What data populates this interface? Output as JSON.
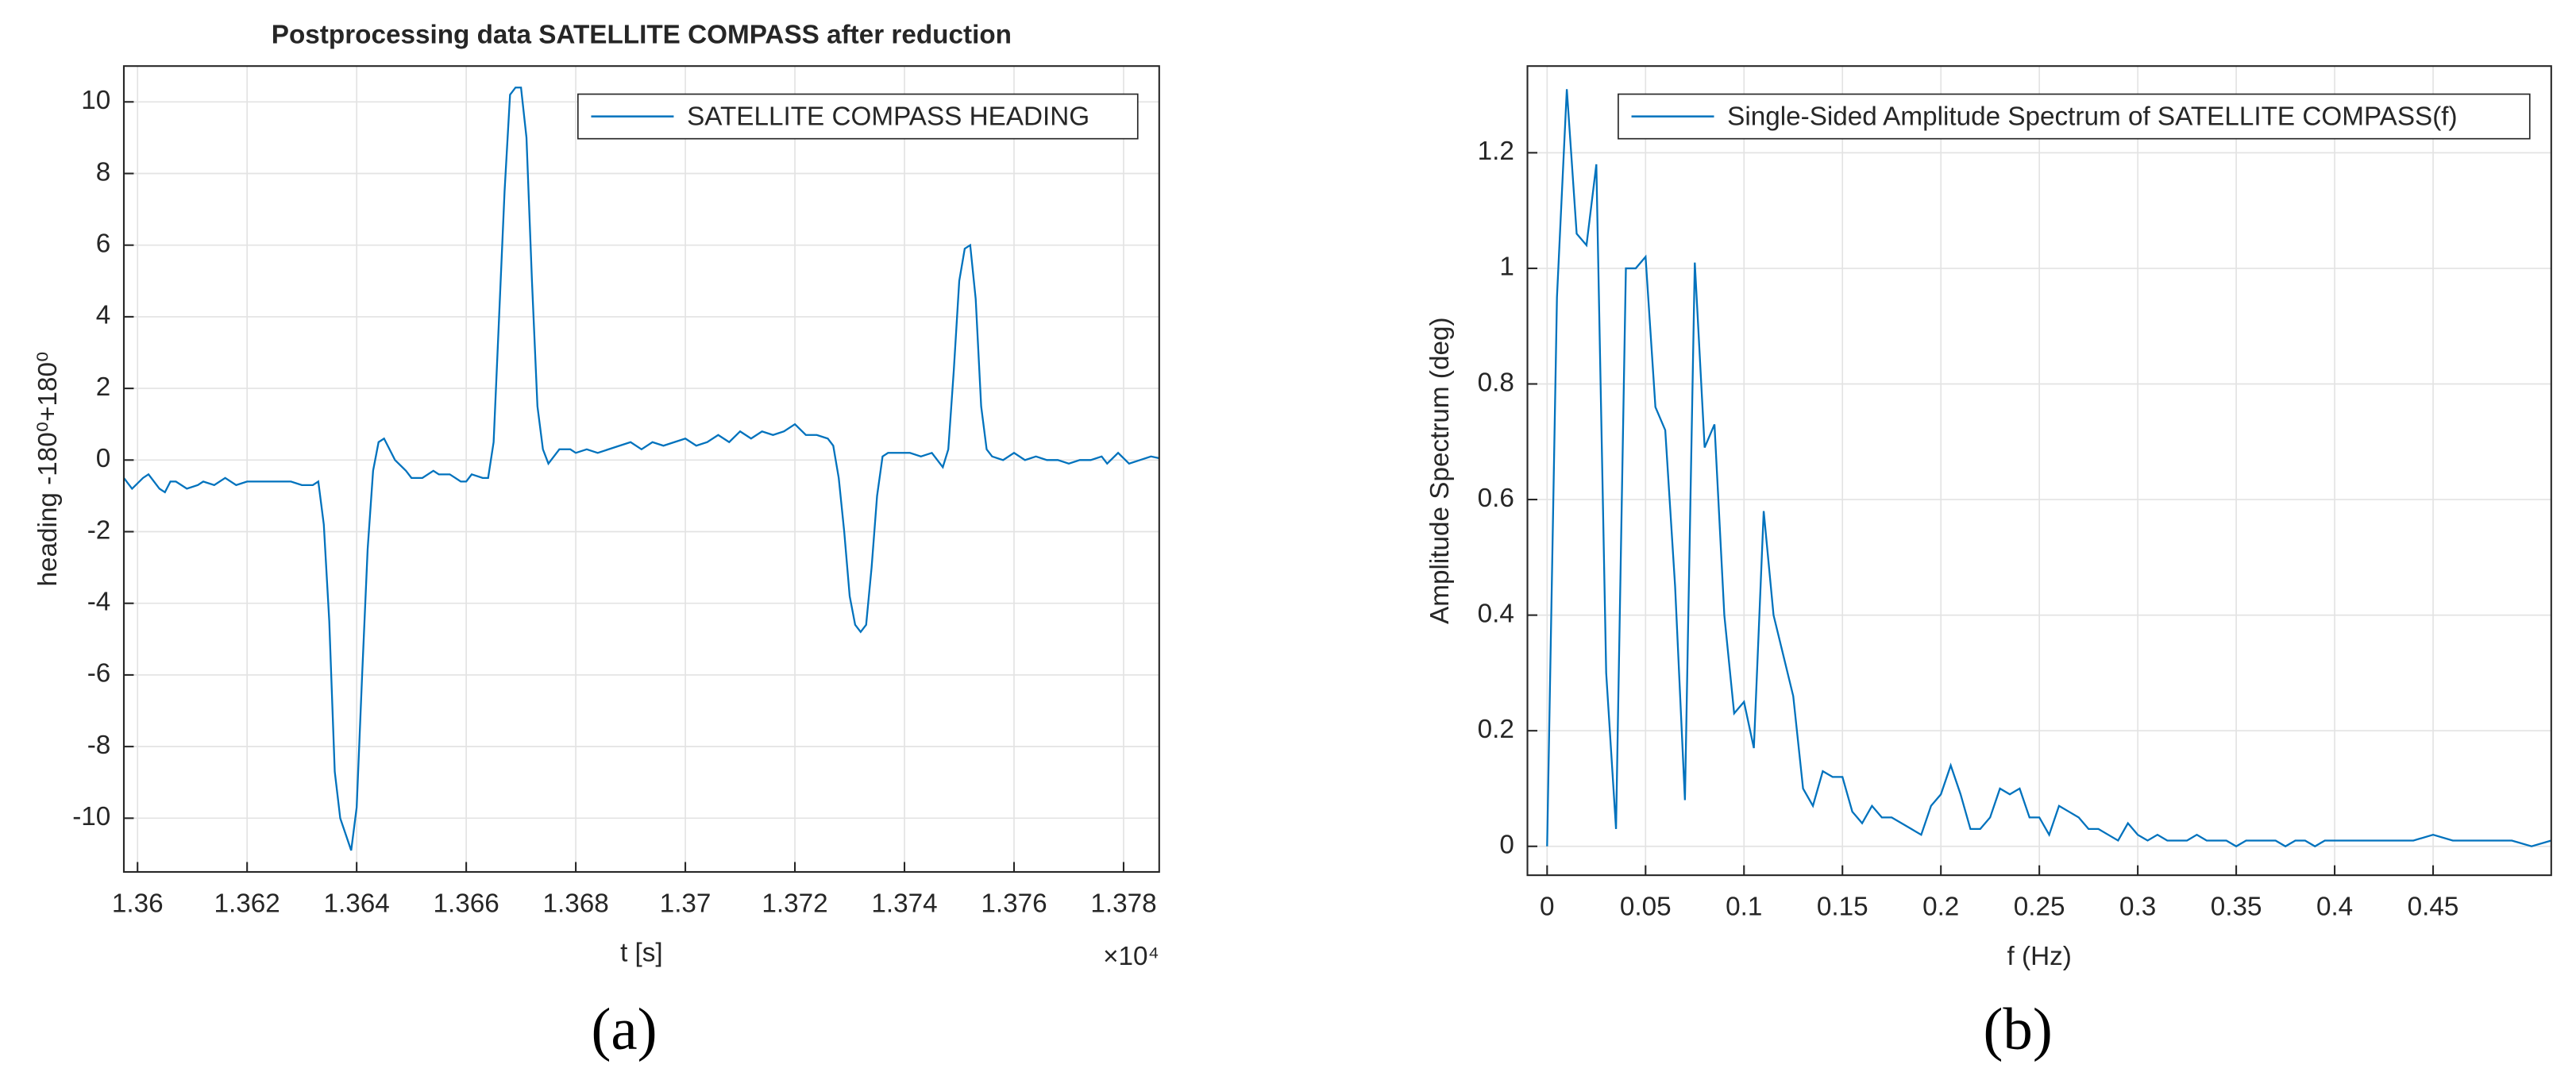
{
  "chart_data": [
    {
      "type": "line",
      "title": "Postprocessing data SATELLITE COMPASS after reduction",
      "xlabel": "t [s]",
      "x_exponent_label": "×10⁴",
      "ylabel": "heading -180⁰+180⁰",
      "panel_label": "(a)",
      "grid": true,
      "legend": "upper right",
      "xlim": [
        13597.5,
        13786.5
      ],
      "ylim": [
        -11.5,
        11
      ],
      "xticks": [
        {
          "value": 13600,
          "label": "1.36"
        },
        {
          "value": 13620,
          "label": "1.362"
        },
        {
          "value": 13640,
          "label": "1.364"
        },
        {
          "value": 13660,
          "label": "1.366"
        },
        {
          "value": 13680,
          "label": "1.368"
        },
        {
          "value": 13700,
          "label": "1.37"
        },
        {
          "value": 13720,
          "label": "1.372"
        },
        {
          "value": 13740,
          "label": "1.374"
        },
        {
          "value": 13760,
          "label": "1.376"
        },
        {
          "value": 13780,
          "label": "1.378"
        }
      ],
      "yticks": [
        -10,
        -8,
        -6,
        -4,
        -2,
        0,
        2,
        4,
        6,
        8,
        10
      ],
      "x": [
        13597.5,
        13599,
        13601,
        13602,
        13604,
        13605,
        13606,
        13607,
        13609,
        13611,
        13612,
        13614,
        13616,
        13618,
        13620,
        13622,
        13624,
        13626,
        13628,
        13630,
        13632,
        13633,
        13634,
        13635,
        13636,
        13637,
        13639,
        13640,
        13641,
        13642,
        13643,
        13644,
        13645,
        13646,
        13647,
        13649,
        13650,
        13651,
        13652,
        13654,
        13655,
        13657,
        13658,
        13659,
        13660,
        13661,
        13663,
        13664,
        13665,
        13666,
        13667,
        13668,
        13669,
        13670,
        13671,
        13672,
        13673,
        13674,
        13675,
        13676,
        13677,
        13679,
        13680,
        13682,
        13684,
        13686,
        13688,
        13690,
        13692,
        13694,
        13696,
        13698,
        13700,
        13702,
        13704,
        13706,
        13708,
        13710,
        13712,
        13714,
        13716,
        13718,
        13720,
        13722,
        13724,
        13726,
        13727,
        13728,
        13729,
        13730,
        13731,
        13732,
        13733,
        13734,
        13735,
        13736,
        13737,
        13739,
        13741,
        13743,
        13745,
        13746,
        13747,
        13748,
        13749,
        13750,
        13751,
        13752,
        13753,
        13754,
        13755,
        13756,
        13758,
        13760,
        13762,
        13764,
        13766,
        13768,
        13770,
        13772,
        13774,
        13776,
        13777,
        13779,
        13781,
        13783,
        13785,
        13786.5
      ],
      "series": [
        {
          "name": "SATELLITE COMPASS HEADING",
          "color": "#0072bd",
          "values": [
            -0.5,
            -0.8,
            -0.5,
            -0.4,
            -0.8,
            -0.9,
            -0.6,
            -0.6,
            -0.8,
            -0.7,
            -0.6,
            -0.7,
            -0.5,
            -0.7,
            -0.6,
            -0.6,
            -0.6,
            -0.6,
            -0.6,
            -0.7,
            -0.7,
            -0.6,
            -1.8,
            -4.5,
            -8.7,
            -10.0,
            -10.9,
            -9.7,
            -6.0,
            -2.5,
            -0.3,
            0.5,
            0.6,
            0.3,
            0.0,
            -0.3,
            -0.5,
            -0.5,
            -0.5,
            -0.3,
            -0.4,
            -0.4,
            -0.5,
            -0.6,
            -0.6,
            -0.4,
            -0.5,
            -0.5,
            0.5,
            4.0,
            7.5,
            10.2,
            10.4,
            10.4,
            9.0,
            5.0,
            1.5,
            0.3,
            -0.1,
            0.1,
            0.3,
            0.3,
            0.2,
            0.3,
            0.2,
            0.3,
            0.4,
            0.5,
            0.3,
            0.5,
            0.4,
            0.5,
            0.6,
            0.4,
            0.5,
            0.7,
            0.5,
            0.8,
            0.6,
            0.8,
            0.7,
            0.8,
            1.0,
            0.7,
            0.7,
            0.6,
            0.4,
            -0.5,
            -2.0,
            -3.8,
            -4.6,
            -4.8,
            -4.6,
            -3.0,
            -1.0,
            0.1,
            0.2,
            0.2,
            0.2,
            0.1,
            0.2,
            0.0,
            -0.2,
            0.3,
            2.5,
            5.0,
            5.9,
            6.0,
            4.5,
            1.5,
            0.3,
            0.1,
            0.0,
            0.2,
            0.0,
            0.1,
            0.0,
            0.0,
            -0.1,
            0.0,
            0.0,
            0.1,
            -0.1,
            0.2,
            -0.1,
            0.0,
            0.1,
            0.05
          ]
        }
      ]
    },
    {
      "type": "line",
      "xlabel": "f (Hz)",
      "ylabel": "Amplitude Spectrum (deg)",
      "panel_label": "(b)",
      "grid": true,
      "legend": "upper right",
      "xlim": [
        -0.01,
        0.51
      ],
      "ylim": [
        -0.05,
        1.35
      ],
      "xticks": [
        0,
        0.05,
        0.1,
        0.15,
        0.2,
        0.25,
        0.3,
        0.35,
        0.4,
        0.45
      ],
      "yticks": [
        0,
        0.2,
        0.4,
        0.6,
        0.8,
        1,
        1.2
      ],
      "x": [
        0,
        0.005,
        0.01,
        0.015,
        0.02,
        0.025,
        0.03,
        0.035,
        0.04,
        0.045,
        0.05,
        0.055,
        0.06,
        0.065,
        0.07,
        0.075,
        0.08,
        0.085,
        0.09,
        0.095,
        0.1,
        0.105,
        0.11,
        0.115,
        0.12,
        0.125,
        0.13,
        0.135,
        0.14,
        0.145,
        0.15,
        0.155,
        0.16,
        0.165,
        0.17,
        0.175,
        0.18,
        0.185,
        0.19,
        0.195,
        0.2,
        0.205,
        0.21,
        0.215,
        0.22,
        0.225,
        0.23,
        0.235,
        0.24,
        0.245,
        0.25,
        0.255,
        0.26,
        0.265,
        0.27,
        0.275,
        0.28,
        0.285,
        0.29,
        0.295,
        0.3,
        0.305,
        0.31,
        0.315,
        0.32,
        0.325,
        0.33,
        0.335,
        0.34,
        0.345,
        0.35,
        0.355,
        0.36,
        0.365,
        0.37,
        0.375,
        0.38,
        0.385,
        0.39,
        0.395,
        0.4,
        0.41,
        0.42,
        0.43,
        0.44,
        0.45,
        0.46,
        0.47,
        0.48,
        0.49,
        0.5,
        0.51
      ],
      "series": [
        {
          "name": "Single-Sided Amplitude Spectrum of SATELLITE COMPASS(f)",
          "color": "#0072bd",
          "values": [
            0,
            0.95,
            1.31,
            1.06,
            1.04,
            1.18,
            0.3,
            0.03,
            1.0,
            1.0,
            1.02,
            0.76,
            0.72,
            0.45,
            0.08,
            1.01,
            0.69,
            0.73,
            0.4,
            0.23,
            0.25,
            0.17,
            0.58,
            0.4,
            0.33,
            0.26,
            0.1,
            0.07,
            0.13,
            0.12,
            0.12,
            0.06,
            0.04,
            0.07,
            0.05,
            0.05,
            0.04,
            0.03,
            0.02,
            0.07,
            0.09,
            0.14,
            0.09,
            0.03,
            0.03,
            0.05,
            0.1,
            0.09,
            0.1,
            0.05,
            0.05,
            0.02,
            0.07,
            0.06,
            0.05,
            0.03,
            0.03,
            0.02,
            0.01,
            0.04,
            0.02,
            0.01,
            0.02,
            0.01,
            0.01,
            0.01,
            0.02,
            0.01,
            0.01,
            0.01,
            0.0,
            0.01,
            0.01,
            0.01,
            0.01,
            0.0,
            0.01,
            0.01,
            0.0,
            0.01,
            0.01,
            0.01,
            0.01,
            0.01,
            0.01,
            0.02,
            0.01,
            0.01,
            0.01,
            0.01,
            0.0,
            0.01
          ]
        }
      ]
    }
  ]
}
